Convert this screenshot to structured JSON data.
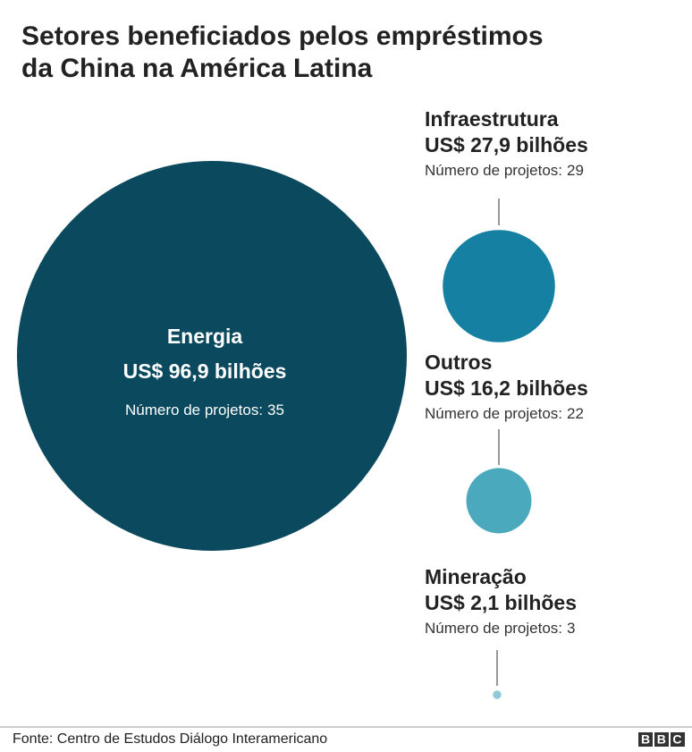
{
  "chart_data": {
    "type": "bubble",
    "title": [
      "Setores beneficiados pelos empréstimos",
      "da China na América Latina"
    ],
    "categories": [
      "Energia",
      "Infraestrutura",
      "Outros",
      "Mineração"
    ],
    "values": [
      96.9,
      27.9,
      16.2,
      2.1
    ],
    "value_labels": [
      "US$ 96,9 bilhões",
      "US$ 27,9 bilhões",
      "US$ 16,2 bilhões",
      "US$ 2,1 bilhões"
    ],
    "projects_label": "Número de projetos:",
    "projects": [
      35,
      29,
      22,
      3
    ],
    "colors": [
      "#0b4a5e",
      "#1680a3",
      "#4ba9be",
      "#8fcad6"
    ],
    "source": "Fonte: Centro de Estudos Diálogo Interamericano",
    "logo": "BBC"
  }
}
